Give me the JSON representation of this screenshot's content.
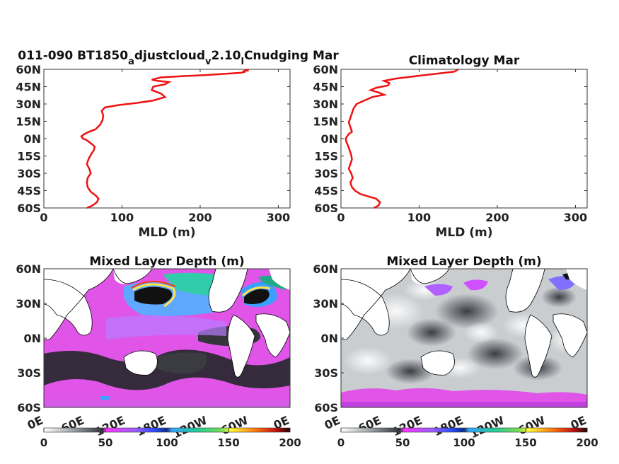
{
  "chart_data": [
    {
      "type": "line",
      "title_parts": {
        "main": "011-090 BT1850",
        "sub1": "a",
        "mid": "djustcloud",
        "sub2": "v",
        "mid2": "2.10",
        "sub3": "l",
        "end": "Cnudging Mar"
      },
      "xlabel": "MLD (m)",
      "xlim": [
        0,
        315
      ],
      "ylim": [
        -60,
        60
      ],
      "xticks": [
        "0",
        "100",
        "200",
        "300"
      ],
      "yticks": [
        "60N",
        "45N",
        "30N",
        "15N",
        "0N",
        "15S",
        "30S",
        "45S",
        "60S"
      ],
      "series": [
        {
          "x": [
            55,
            62,
            68,
            70,
            66,
            60,
            56,
            55,
            56,
            60,
            58,
            55,
            57,
            60,
            64,
            65,
            62,
            58,
            54,
            50,
            48,
            52,
            58,
            66,
            72,
            75,
            76,
            74,
            78,
            95,
            120,
            140,
            155,
            150,
            138,
            140,
            155,
            160,
            145,
            138,
            150,
            175,
            205,
            230,
            252,
            258,
            255,
            262,
            258
          ],
          "y": [
            -60,
            -58,
            -55,
            -52,
            -49,
            -46,
            -42,
            -38,
            -34,
            -30,
            -26,
            -22,
            -18,
            -14,
            -10,
            -7,
            -5,
            -3,
            -1,
            0,
            2,
            4,
            6,
            8,
            12,
            16,
            20,
            24,
            27,
            29,
            31,
            33,
            36,
            39,
            42,
            45,
            47,
            49,
            50,
            51,
            53,
            54,
            55,
            56,
            57,
            58,
            58.5,
            59,
            60
          ]
        }
      ]
    },
    {
      "type": "line",
      "title": "Climatology Mar",
      "xlabel": "MLD (m)",
      "xlim": [
        0,
        315
      ],
      "ylim": [
        -60,
        60
      ],
      "xticks": [
        "0",
        "100",
        "200",
        "300"
      ],
      "yticks": [
        "60N",
        "45N",
        "30N",
        "15N",
        "0N",
        "15S",
        "30S",
        "45S",
        "60S"
      ],
      "series": [
        {
          "x": [
            42,
            48,
            50,
            45,
            35,
            25,
            18,
            14,
            12,
            15,
            13,
            10,
            12,
            14,
            13,
            11,
            9,
            7,
            6,
            8,
            10,
            14,
            12,
            10,
            12,
            14,
            16,
            20,
            30,
            40,
            55,
            48,
            38,
            45,
            60,
            62,
            55,
            70,
            95,
            120,
            145,
            150
          ],
          "y": [
            -60,
            -58,
            -55,
            -52,
            -50,
            -48,
            -45,
            -42,
            -38,
            -34,
            -30,
            -26,
            -22,
            -18,
            -14,
            -10,
            -6,
            -3,
            0,
            2,
            4,
            6,
            10,
            14,
            18,
            22,
            26,
            30,
            33,
            36,
            38,
            40,
            42,
            44,
            46,
            48,
            50,
            52,
            54,
            56,
            58,
            60
          ]
        }
      ]
    },
    {
      "type": "heatmap",
      "title": "Mixed Layer Depth (m)",
      "xticks": [
        "0E",
        "60E",
        "120E",
        "180E",
        "120W",
        "60W",
        "0E"
      ],
      "yticks": [
        "60N",
        "30N",
        "0N",
        "30S",
        "60S"
      ],
      "colorbar": {
        "ticks": [
          "0",
          "50",
          "100",
          "150",
          "200"
        ],
        "range": [
          0,
          200
        ]
      }
    },
    {
      "type": "heatmap",
      "title": "Mixed Layer Depth (m)",
      "xticks": [
        "0E",
        "60E",
        "120E",
        "180E",
        "120W",
        "60W",
        "0E"
      ],
      "yticks": [
        "60N",
        "30N",
        "0N",
        "30S",
        "60S"
      ],
      "colorbar": {
        "ticks": [
          "0",
          "50",
          "100",
          "150",
          "200"
        ],
        "range": [
          0,
          200
        ]
      }
    }
  ],
  "colors": {
    "line": "#ee1111",
    "land": "#ffffff",
    "coast": "#000000"
  }
}
